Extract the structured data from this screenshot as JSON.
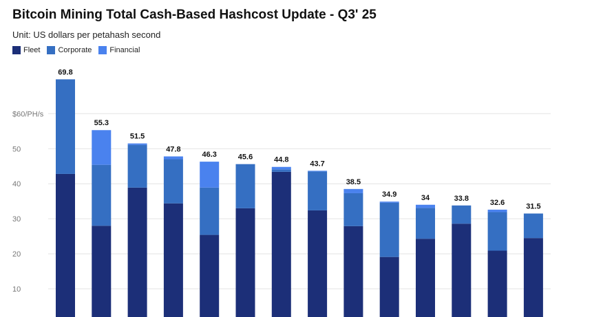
{
  "chart_data": {
    "type": "bar",
    "stacked": true,
    "title": "Bitcoin Mining Total Cash-Based Hashcost Update - Q3' 25",
    "subtitle": "Unit: US dollars per petahash second",
    "categories": [
      "",
      "",
      "",
      "",
      "",
      "",
      "",
      "",
      "",
      "",
      "",
      "",
      "",
      ""
    ],
    "series": [
      {
        "name": "Fleet",
        "color": "#1c2f78",
        "values": [
          42.8,
          28.0,
          38.9,
          34.4,
          25.4,
          33.0,
          43.4,
          32.4,
          27.9,
          19.1,
          24.3,
          28.6,
          20.9,
          24.5
        ]
      },
      {
        "name": "Corporate",
        "color": "#356fc2",
        "values": [
          27.0,
          17.4,
          12.2,
          12.6,
          13.5,
          12.6,
          0.7,
          11.1,
          9.4,
          15.5,
          8.8,
          5.2,
          11.0,
          7.0
        ]
      },
      {
        "name": "Financial",
        "color": "#4a82ee",
        "values": [
          0.0,
          9.9,
          0.4,
          0.8,
          7.4,
          0.0,
          0.7,
          0.2,
          1.2,
          0.3,
          0.9,
          0.0,
          0.7,
          0.0
        ]
      }
    ],
    "totals": [
      "69.8",
      "55.3",
      "51.5",
      "47.8",
      "46.3",
      "45.6",
      "44.8",
      "43.7",
      "38.5",
      "34.9",
      "34",
      "33.8",
      "32.6",
      "31.5"
    ],
    "y_ticks": [
      {
        "value": 10,
        "label": "10"
      },
      {
        "value": 20,
        "label": "20"
      },
      {
        "value": 30,
        "label": "30"
      },
      {
        "value": 40,
        "label": "40"
      },
      {
        "value": 50,
        "label": "50"
      },
      {
        "value": 60,
        "label": "$60/PH/s"
      }
    ],
    "ylim": [
      0,
      70
    ],
    "grid": true,
    "legend_position": "top-left"
  }
}
